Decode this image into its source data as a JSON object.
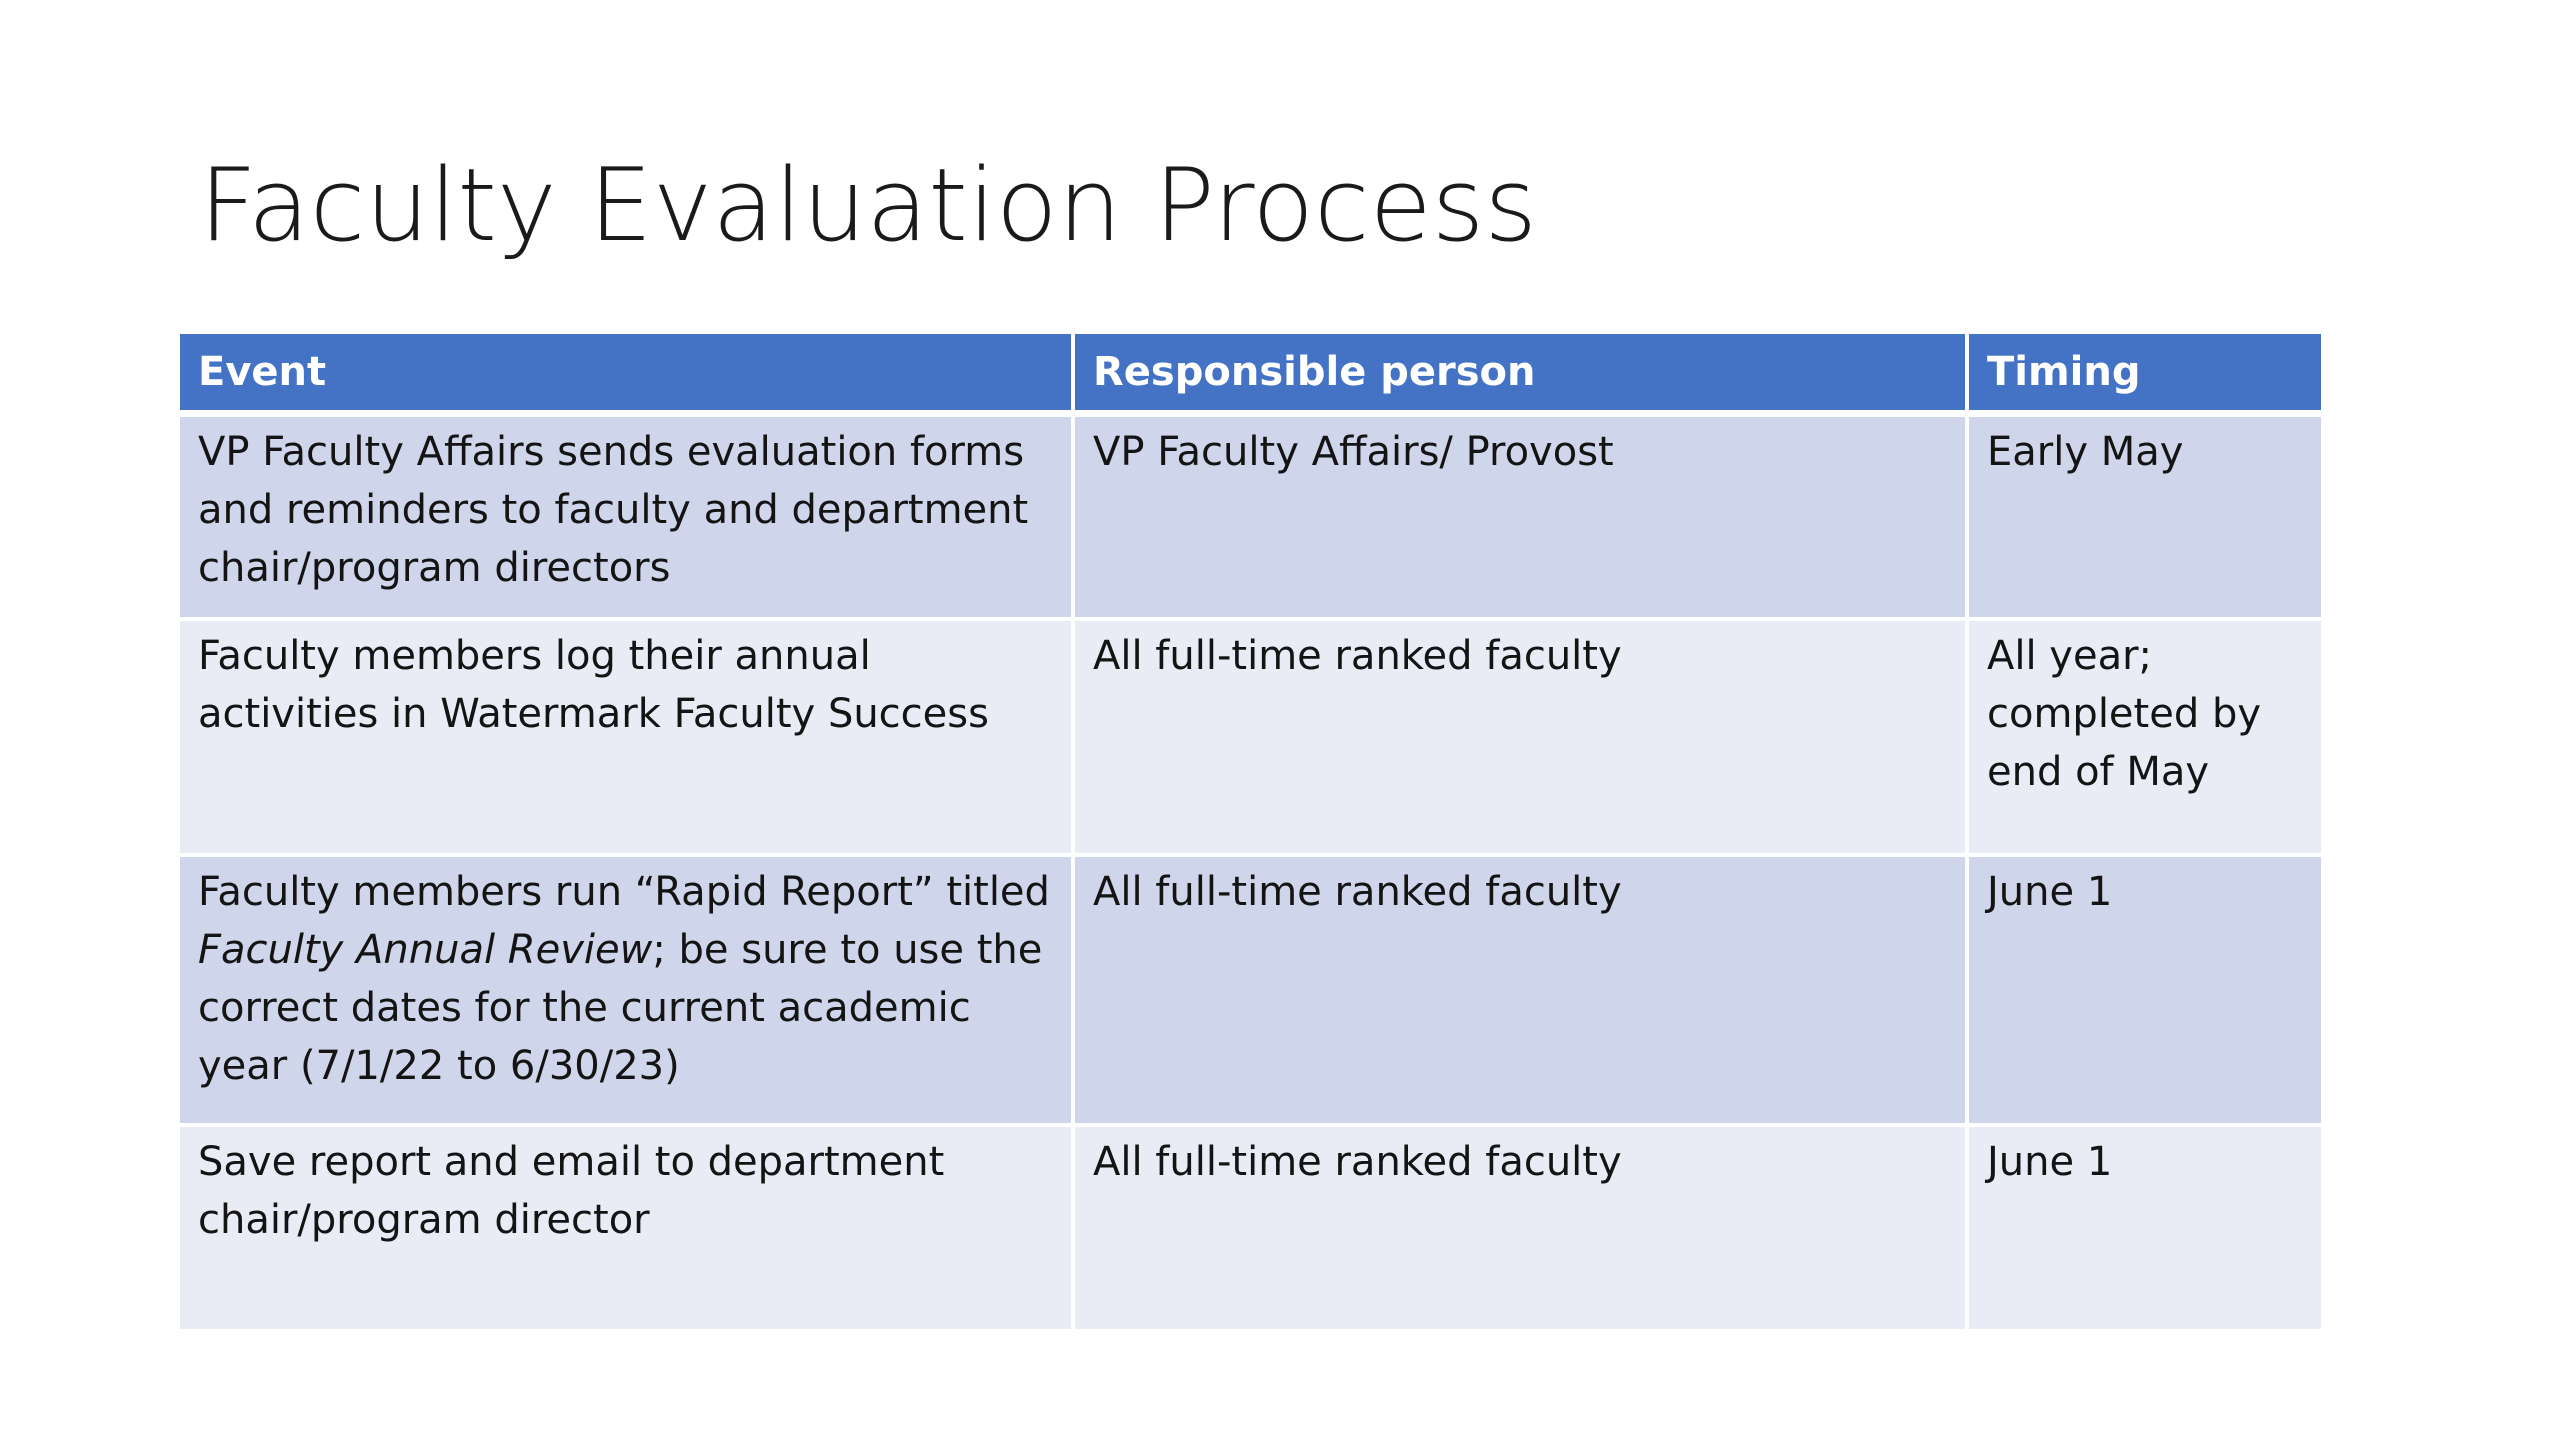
{
  "slide": {
    "title": "Faculty Evaluation Process"
  },
  "table": {
    "headers": [
      "Event",
      "Responsible person",
      "Timing"
    ],
    "rows": [
      {
        "event": "VP Faculty Affairs sends evaluation forms and reminders to faculty and department chair/program directors",
        "responsible": "VP Faculty Affairs/ Provost",
        "timing": "Early May"
      },
      {
        "event": "Faculty members log their annual activities in Watermark Faculty Success",
        "responsible": "All full-time ranked faculty",
        "timing": "All year; completed by end of May"
      },
      {
        "event_before": "Faculty members run “Rapid Report” titled ",
        "event_italic": "Faculty Annual Review",
        "event_after": "; be sure to use the correct dates for the current academic year (7/1/22 to 6/30/23)",
        "responsible": "All full-time ranked faculty",
        "timing": "June 1"
      },
      {
        "event": "Save report and email to department chair/program director",
        "responsible": "All full-time ranked faculty",
        "timing": "June 1"
      }
    ]
  },
  "colors": {
    "header_bg": "#4472c4",
    "row_band_dark": "#cfd5ea",
    "row_band_light": "#e9ebf5"
  }
}
